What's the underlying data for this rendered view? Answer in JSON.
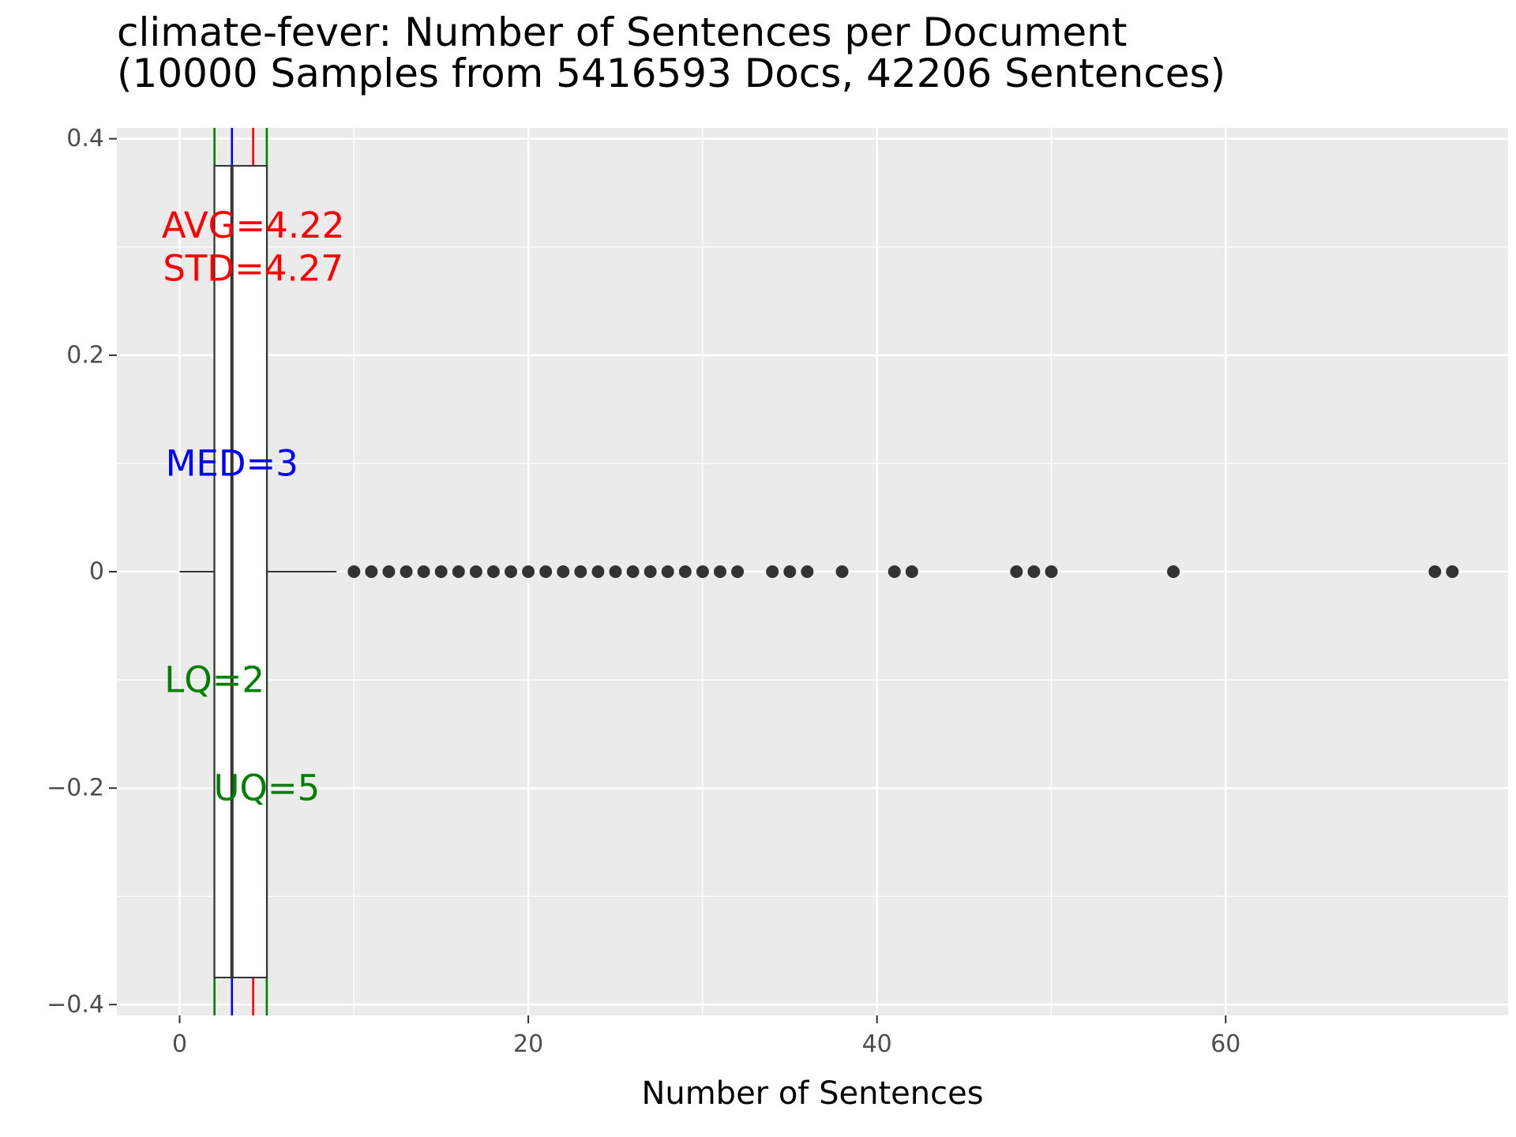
{
  "chart_data": {
    "type": "boxplot",
    "title_line1": "climate-fever: Number of Sentences per Document",
    "title_line2": "(10000 Samples from 5416593 Docs, 42206 Sentences)",
    "xlabel": "Number of Sentences",
    "ylabel": "",
    "xlim": [
      -3.6,
      76.2
    ],
    "ylim": [
      -0.41,
      0.41
    ],
    "x_ticks": [
      0,
      20,
      40,
      60
    ],
    "x_tick_labels": [
      "0",
      "20",
      "40",
      "60"
    ],
    "y_ticks": [
      0.4,
      0.2,
      0,
      -0.2,
      -0.4
    ],
    "y_tick_labels": [
      "0.4",
      "0.2",
      "0",
      "−0.2",
      "−0.4"
    ],
    "grid": true,
    "box": {
      "y_center": 0,
      "y_half_width": 0.375,
      "q1": 2,
      "median": 3,
      "q3": 5,
      "whisker_low": 0,
      "whisker_high": 9
    },
    "outliers": [
      10,
      11,
      12,
      13,
      14,
      15,
      16,
      17,
      18,
      19,
      20,
      21,
      22,
      23,
      24,
      25,
      26,
      27,
      28,
      29,
      30,
      31,
      32,
      34,
      35,
      36,
      38,
      41,
      42,
      48,
      49,
      50,
      57,
      72,
      73
    ],
    "reference_lines": [
      {
        "name": "LQ",
        "x": 2,
        "color": "#008000"
      },
      {
        "name": "UQ",
        "x": 5,
        "color": "#008000"
      },
      {
        "name": "MED",
        "x": 3,
        "color": "#0000ff"
      },
      {
        "name": "AVG",
        "x": 4.22,
        "color": "#ff0000"
      }
    ],
    "annotations": [
      {
        "text": "AVG=4.22",
        "x": 4.22,
        "y": 0.32,
        "color": "#ff0000"
      },
      {
        "text": "STD=4.27",
        "x": 4.22,
        "y": 0.28,
        "color": "#ff0000"
      },
      {
        "text": "MED=3",
        "x": 3,
        "y": 0.1,
        "color": "#0000ff"
      },
      {
        "text": "LQ=2",
        "x": 2,
        "y": -0.1,
        "color": "#008000"
      },
      {
        "text": "UQ=5",
        "x": 5,
        "y": -0.2,
        "color": "#008000"
      }
    ],
    "colors": {
      "panel_background": "#ebebeb",
      "grid": "#ffffff",
      "box_line": "#333333",
      "point": "#333333"
    }
  }
}
